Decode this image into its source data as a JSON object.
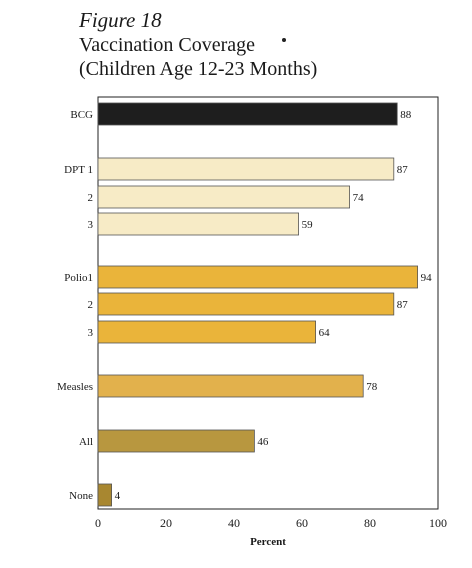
{
  "figure": {
    "label": "Figure 18",
    "title_line1": "Vaccination Coverage",
    "title_line2": "(Children Age 12-23 Months)"
  },
  "chart_data": {
    "type": "bar",
    "orientation": "horizontal",
    "title": "Vaccination Coverage (Children Age 12-23 Months)",
    "xlabel": "Percent",
    "ylabel": "",
    "xlim": [
      0,
      100
    ],
    "xticks": [
      0,
      20,
      40,
      60,
      80,
      100
    ],
    "grid": false,
    "legend": "none",
    "bars": [
      {
        "label": "BCG",
        "value": 88,
        "color": "#1e1e1e"
      },
      {
        "label": "DPT 1",
        "value": 87,
        "color": "#f7ebc6"
      },
      {
        "label": "2",
        "value": 74,
        "color": "#f7ebc6"
      },
      {
        "label": "3",
        "value": 59,
        "color": "#f7ebc6"
      },
      {
        "label": "Polio1",
        "value": 94,
        "color": "#eab43a"
      },
      {
        "label": "2",
        "value": 87,
        "color": "#eab43a"
      },
      {
        "label": "3",
        "value": 64,
        "color": "#eab43a"
      },
      {
        "label": "Measles",
        "value": 78,
        "color": "#e2b14c"
      },
      {
        "label": "All",
        "value": 46,
        "color": "#b8973f"
      },
      {
        "label": "None",
        "value": 4,
        "color": "#a88730"
      }
    ]
  }
}
